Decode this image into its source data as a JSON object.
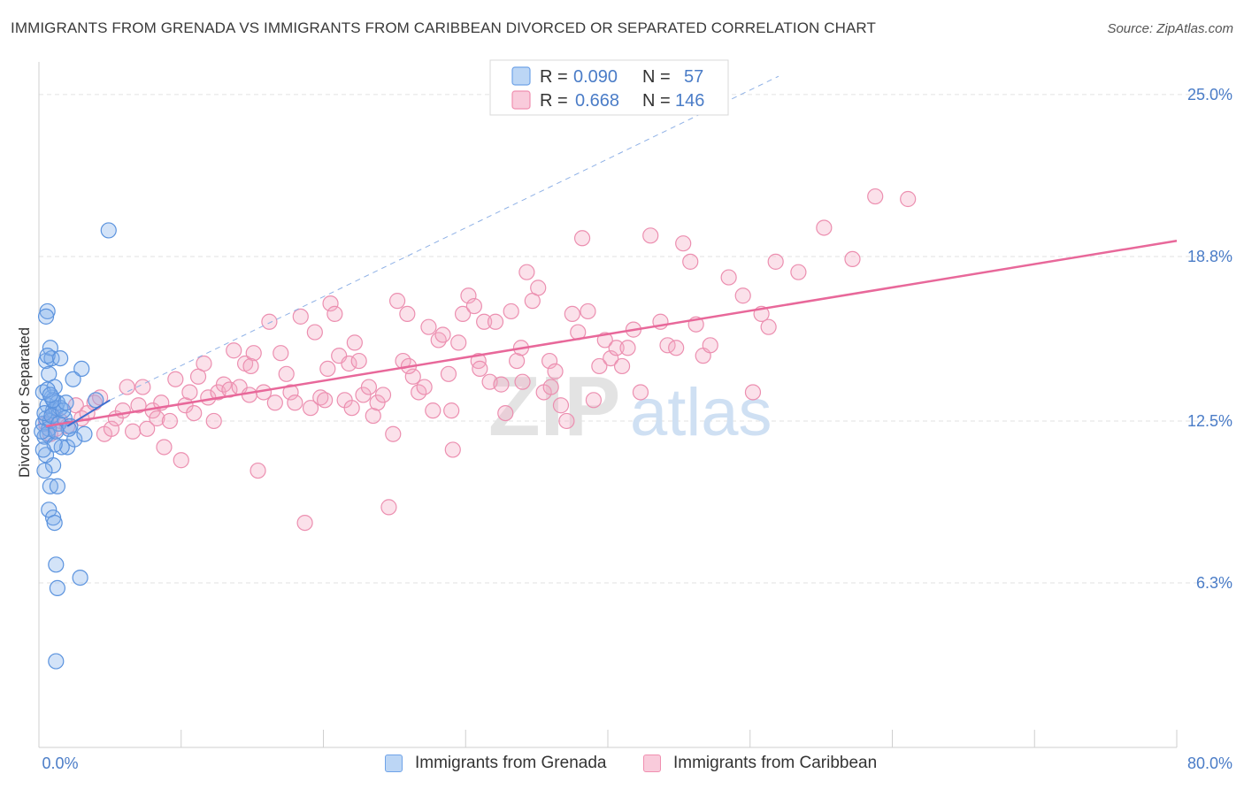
{
  "title": "IMMIGRANTS FROM GRENADA VS IMMIGRANTS FROM CARIBBEAN DIVORCED OR SEPARATED CORRELATION CHART",
  "source": "Source: ZipAtlas.com",
  "watermark": {
    "zip": "ZIP",
    "atlas": "atlas"
  },
  "legend_top": {
    "rows": [
      {
        "r_label": "R = ",
        "r_value": "0.090",
        "n_label": "N = ",
        "n_value": "57",
        "color": "#6fa3e8"
      },
      {
        "r_label": "R = ",
        "r_value": "0.668",
        "n_label": "N = ",
        "n_value": "146",
        "color": "#f08fb0"
      }
    ]
  },
  "legend_bottom": [
    {
      "label": "Immigrants from Grenada",
      "fill": "#bcd6f5",
      "stroke": "#6fa3e8"
    },
    {
      "label": "Immigrants from Caribbean",
      "fill": "#f9cbdb",
      "stroke": "#f08fb0"
    }
  ],
  "colors": {
    "grenada_fill": "rgba(130,176,235,0.35)",
    "grenada_stroke": "#5b93de",
    "caribbean_fill": "rgba(244,170,196,0.35)",
    "caribbean_stroke": "#ec8fb0",
    "caribbean_line": "#e8689a",
    "grenada_line": "#3f6fd0",
    "tick_text": "#4a7cc7",
    "grid": "#e2e2e2"
  },
  "chart_data": {
    "type": "scatter",
    "title": "IMMIGRANTS FROM GRENADA VS IMMIGRANTS FROM CARIBBEAN DIVORCED OR SEPARATED CORRELATION CHART",
    "xlabel": "",
    "ylabel": "Divorced or Separated",
    "xlim": [
      0,
      80
    ],
    "ylim": [
      0,
      26.25
    ],
    "x_tick_labels": [
      "0.0%",
      "80.0%"
    ],
    "y_ticks": [
      6.3,
      12.5,
      18.8,
      25.0
    ],
    "y_tick_labels": [
      "6.3%",
      "12.5%",
      "18.8%",
      "25.0%"
    ],
    "grid": true,
    "legend_position": "top-center",
    "series": [
      {
        "name": "Immigrants from Grenada",
        "R": 0.09,
        "N": 57,
        "points": [
          [
            0.3,
            12.4
          ],
          [
            0.5,
            12.6
          ],
          [
            0.6,
            13.1
          ],
          [
            0.4,
            11.9
          ],
          [
            0.7,
            12.2
          ],
          [
            0.9,
            13.4
          ],
          [
            1.0,
            12.9
          ],
          [
            0.6,
            12.0
          ],
          [
            0.8,
            12.5
          ],
          [
            1.2,
            13.0
          ],
          [
            0.3,
            13.6
          ],
          [
            0.5,
            14.8
          ],
          [
            0.7,
            14.3
          ],
          [
            0.8,
            15.3
          ],
          [
            0.6,
            16.7
          ],
          [
            0.5,
            16.5
          ],
          [
            0.9,
            14.9
          ],
          [
            1.1,
            13.8
          ],
          [
            1.3,
            13.2
          ],
          [
            1.5,
            13.0
          ],
          [
            1.8,
            12.6
          ],
          [
            2.2,
            12.3
          ],
          [
            2.0,
            11.5
          ],
          [
            2.5,
            11.8
          ],
          [
            1.6,
            11.5
          ],
          [
            1.1,
            11.6
          ],
          [
            1.0,
            10.8
          ],
          [
            0.5,
            11.2
          ],
          [
            0.4,
            10.6
          ],
          [
            0.8,
            10.0
          ],
          [
            1.3,
            10.0
          ],
          [
            0.7,
            9.1
          ],
          [
            1.0,
            8.8
          ],
          [
            1.1,
            8.6
          ],
          [
            1.2,
            7.0
          ],
          [
            1.3,
            6.1
          ],
          [
            2.9,
            6.5
          ],
          [
            1.2,
            3.3
          ],
          [
            3.0,
            14.5
          ],
          [
            4.9,
            19.8
          ],
          [
            2.4,
            14.1
          ],
          [
            1.0,
            13.3
          ],
          [
            0.6,
            13.7
          ],
          [
            0.4,
            12.8
          ],
          [
            0.2,
            12.1
          ],
          [
            0.9,
            12.7
          ],
          [
            1.4,
            12.4
          ],
          [
            1.7,
            12.9
          ],
          [
            2.1,
            12.2
          ],
          [
            0.3,
            11.4
          ],
          [
            0.6,
            15.0
          ],
          [
            1.5,
            14.9
          ],
          [
            1.9,
            13.2
          ],
          [
            3.2,
            12.0
          ],
          [
            0.8,
            13.5
          ],
          [
            1.2,
            12.1
          ],
          [
            4.0,
            13.3
          ]
        ]
      },
      {
        "name": "Immigrants from Caribbean",
        "R": 0.668,
        "N": 146,
        "points": [
          [
            0.5,
            12.4
          ],
          [
            0.8,
            12.0
          ],
          [
            1.0,
            12.7
          ],
          [
            1.2,
            12.2
          ],
          [
            1.5,
            12.5
          ],
          [
            2.0,
            12.3
          ],
          [
            2.6,
            13.1
          ],
          [
            3.0,
            12.6
          ],
          [
            3.4,
            12.8
          ],
          [
            3.9,
            13.2
          ],
          [
            4.3,
            13.4
          ],
          [
            4.6,
            12.0
          ],
          [
            5.1,
            12.2
          ],
          [
            5.4,
            12.6
          ],
          [
            5.9,
            12.9
          ],
          [
            6.2,
            13.8
          ],
          [
            6.6,
            12.1
          ],
          [
            7.0,
            13.1
          ],
          [
            7.3,
            13.8
          ],
          [
            7.6,
            12.2
          ],
          [
            8.0,
            12.9
          ],
          [
            8.3,
            12.6
          ],
          [
            8.6,
            13.2
          ],
          [
            8.8,
            11.5
          ],
          [
            9.2,
            12.5
          ],
          [
            9.6,
            14.1
          ],
          [
            10.0,
            11.0
          ],
          [
            10.3,
            13.1
          ],
          [
            10.6,
            13.6
          ],
          [
            10.9,
            12.8
          ],
          [
            11.2,
            14.2
          ],
          [
            11.6,
            14.7
          ],
          [
            11.9,
            13.4
          ],
          [
            12.3,
            12.5
          ],
          [
            12.6,
            13.6
          ],
          [
            13.0,
            13.9
          ],
          [
            13.4,
            13.7
          ],
          [
            13.7,
            15.2
          ],
          [
            14.1,
            13.8
          ],
          [
            14.5,
            14.7
          ],
          [
            14.8,
            13.5
          ],
          [
            15.1,
            15.1
          ],
          [
            15.4,
            10.6
          ],
          [
            15.8,
            13.6
          ],
          [
            16.2,
            16.3
          ],
          [
            16.6,
            13.2
          ],
          [
            17.0,
            15.1
          ],
          [
            17.4,
            14.3
          ],
          [
            17.7,
            13.6
          ],
          [
            18.0,
            13.2
          ],
          [
            18.4,
            16.5
          ],
          [
            18.7,
            8.6
          ],
          [
            19.1,
            13.0
          ],
          [
            19.4,
            15.9
          ],
          [
            19.8,
            13.4
          ],
          [
            20.1,
            13.3
          ],
          [
            20.5,
            17.0
          ],
          [
            20.8,
            16.6
          ],
          [
            21.1,
            15.0
          ],
          [
            21.5,
            13.3
          ],
          [
            21.8,
            14.7
          ],
          [
            22.2,
            15.5
          ],
          [
            22.5,
            14.8
          ],
          [
            22.8,
            13.5
          ],
          [
            23.2,
            13.8
          ],
          [
            23.5,
            12.7
          ],
          [
            23.8,
            13.2
          ],
          [
            24.2,
            13.5
          ],
          [
            24.6,
            9.2
          ],
          [
            24.9,
            12.0
          ],
          [
            25.2,
            17.1
          ],
          [
            25.6,
            14.8
          ],
          [
            25.9,
            16.6
          ],
          [
            26.3,
            14.2
          ],
          [
            26.7,
            13.6
          ],
          [
            27.1,
            13.8
          ],
          [
            27.4,
            16.1
          ],
          [
            27.7,
            12.9
          ],
          [
            28.1,
            15.6
          ],
          [
            28.4,
            15.8
          ],
          [
            28.8,
            14.3
          ],
          [
            29.1,
            11.4
          ],
          [
            29.5,
            15.5
          ],
          [
            29.8,
            16.6
          ],
          [
            30.2,
            17.3
          ],
          [
            30.6,
            16.9
          ],
          [
            30.9,
            14.8
          ],
          [
            31.3,
            16.3
          ],
          [
            31.7,
            14.0
          ],
          [
            32.1,
            16.3
          ],
          [
            32.5,
            13.9
          ],
          [
            32.8,
            12.8
          ],
          [
            33.2,
            16.7
          ],
          [
            33.6,
            14.8
          ],
          [
            34.0,
            14.0
          ],
          [
            34.3,
            18.2
          ],
          [
            34.7,
            17.1
          ],
          [
            35.1,
            17.6
          ],
          [
            35.5,
            13.6
          ],
          [
            35.9,
            14.8
          ],
          [
            36.3,
            14.4
          ],
          [
            36.7,
            13.1
          ],
          [
            37.1,
            12.5
          ],
          [
            37.5,
            16.6
          ],
          [
            37.9,
            15.9
          ],
          [
            38.2,
            19.5
          ],
          [
            38.6,
            16.7
          ],
          [
            39.0,
            13.3
          ],
          [
            39.4,
            14.6
          ],
          [
            39.8,
            15.6
          ],
          [
            40.2,
            14.9
          ],
          [
            40.6,
            15.3
          ],
          [
            41.0,
            14.6
          ],
          [
            41.4,
            15.3
          ],
          [
            41.8,
            16.0
          ],
          [
            42.3,
            13.6
          ],
          [
            43.0,
            19.6
          ],
          [
            43.7,
            16.3
          ],
          [
            44.2,
            15.4
          ],
          [
            44.8,
            15.3
          ],
          [
            45.3,
            19.3
          ],
          [
            45.8,
            18.6
          ],
          [
            46.2,
            16.2
          ],
          [
            46.7,
            15.0
          ],
          [
            47.2,
            15.4
          ],
          [
            48.5,
            18.0
          ],
          [
            49.5,
            17.3
          ],
          [
            50.2,
            13.6
          ],
          [
            50.8,
            16.6
          ],
          [
            51.3,
            16.1
          ],
          [
            51.8,
            18.6
          ],
          [
            53.4,
            18.2
          ],
          [
            55.2,
            19.9
          ],
          [
            57.2,
            18.7
          ],
          [
            58.8,
            21.1
          ],
          [
            61.1,
            21.0
          ],
          [
            14.9,
            14.6
          ],
          [
            20.3,
            14.5
          ],
          [
            22.0,
            13.0
          ],
          [
            26.0,
            14.6
          ],
          [
            29.0,
            12.9
          ],
          [
            31.0,
            14.5
          ],
          [
            33.9,
            15.3
          ],
          [
            36.0,
            13.8
          ]
        ]
      }
    ],
    "trend_lines": [
      {
        "series": "Immigrants from Caribbean",
        "style": "solid",
        "x": [
          0.5,
          80
        ],
        "y": [
          12.3,
          19.4
        ]
      },
      {
        "series": "Immigrants from Grenada",
        "style": "solid",
        "x": [
          2.0,
          5.0
        ],
        "y": [
          12.3,
          13.3
        ]
      },
      {
        "series": "Immigrants from Grenada",
        "style": "dashed",
        "x": [
          5.0,
          52.0
        ],
        "y": [
          13.3,
          25.7
        ]
      }
    ]
  }
}
